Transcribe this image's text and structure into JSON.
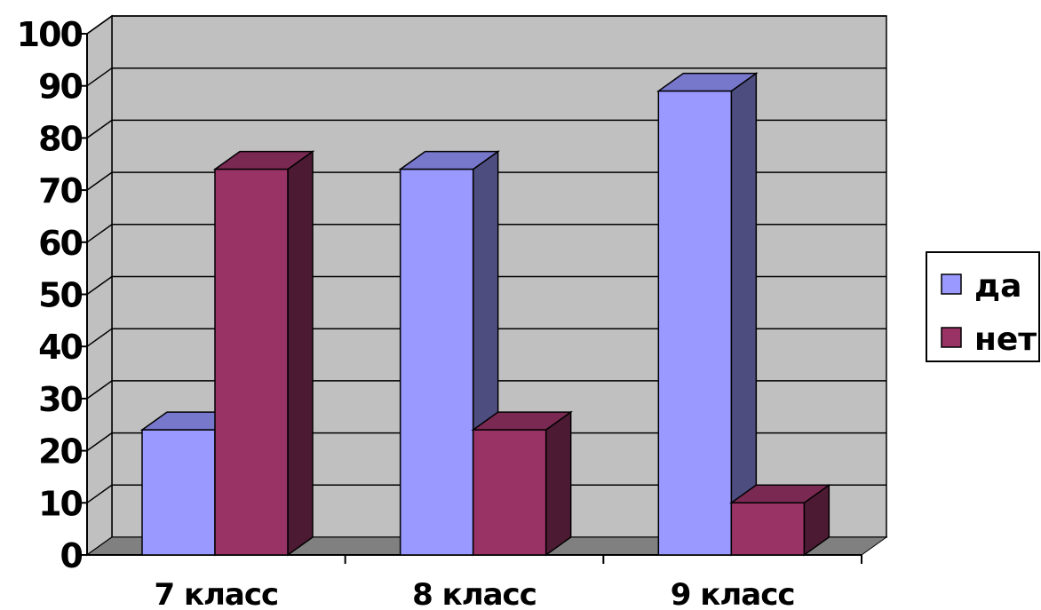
{
  "chart_data": {
    "type": "bar",
    "variant": "3d-clustered-column",
    "categories": [
      "7 класс",
      "8 класс",
      "9 класс"
    ],
    "series": [
      {
        "name": "да",
        "values": [
          24,
          74,
          89
        ],
        "color": "#9999FF",
        "top_color": "#7777CC",
        "side_color": "#4D4D80"
      },
      {
        "name": "нет",
        "values": [
          74,
          24,
          10
        ],
        "color": "#993366",
        "top_color": "#7A2952",
        "side_color": "#4D1A33"
      }
    ],
    "ylim": [
      0,
      100
    ],
    "yticks": [
      "0",
      "10",
      "20",
      "30",
      "40",
      "50",
      "60",
      "70",
      "80",
      "90",
      "100"
    ],
    "grid": true,
    "legend": "right",
    "colors": {
      "wall": "#C0C0C0",
      "floor": "#808080",
      "grid": "#000000"
    }
  }
}
